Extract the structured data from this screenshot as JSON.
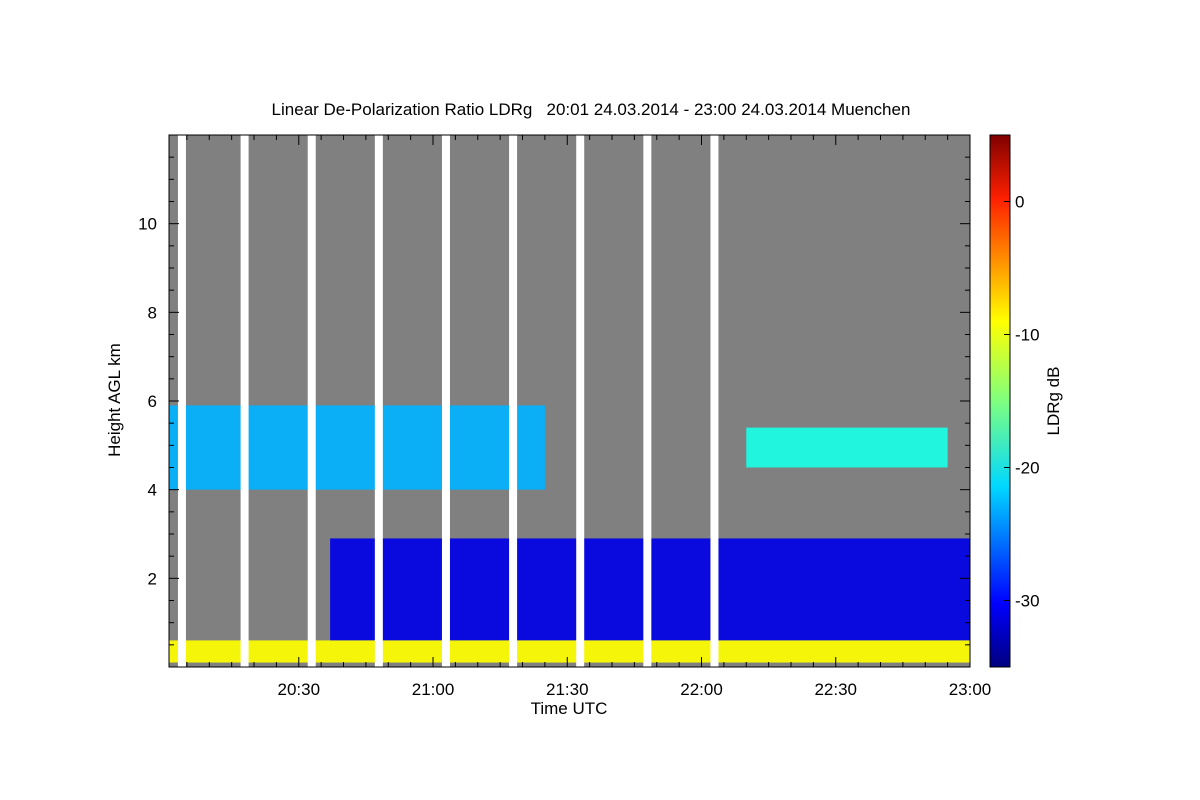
{
  "chart_data": {
    "type": "heatmap",
    "title": "Linear De-Polarization Ratio LDRg   20:01 24.03.2014 - 23:00 24.03.2014 Muenchen",
    "xlabel": "Time UTC",
    "ylabel": "Height AGL km",
    "colorbar_label": "LDRg dB",
    "x_range_minutes_utc": [
      1201,
      1380
    ],
    "x_ticks": [
      {
        "value": 1230,
        "label": "20:30"
      },
      {
        "value": 1260,
        "label": "21:00"
      },
      {
        "value": 1290,
        "label": "21:30"
      },
      {
        "value": 1320,
        "label": "22:00"
      },
      {
        "value": 1350,
        "label": "22:30"
      },
      {
        "value": 1380,
        "label": "23:00"
      }
    ],
    "y_range_km": [
      0,
      12
    ],
    "y_ticks": [
      {
        "value": 2,
        "label": "2"
      },
      {
        "value": 4,
        "label": "4"
      },
      {
        "value": 6,
        "label": "6"
      },
      {
        "value": 8,
        "label": "8"
      },
      {
        "value": 10,
        "label": "10"
      }
    ],
    "colorbar_range_db": [
      -35,
      5
    ],
    "colorbar_ticks": [
      {
        "value": 0,
        "label": "0"
      },
      {
        "value": -10,
        "label": "-10"
      },
      {
        "value": -20,
        "label": "-20"
      },
      {
        "value": -30,
        "label": "-30"
      }
    ],
    "colormap": "jet",
    "no_signal_color": "#808080",
    "scan_gap_times_utc": [
      "20:03",
      "20:17",
      "20:32",
      "20:47",
      "21:02",
      "21:17",
      "21:32",
      "21:47",
      "22:02"
    ],
    "features": [
      {
        "name": "upper aerosol/ice layer",
        "t_start": "20:01",
        "t_end": "21:25",
        "h_bottom_km": 4.0,
        "h_top_km": 5.9,
        "ldr_db": -23
      },
      {
        "name": "thin upper layer",
        "t_start": "22:10",
        "t_end": "22:55",
        "h_bottom_km": 4.5,
        "h_top_km": 5.4,
        "ldr_db": -19
      },
      {
        "name": "lower cloud layer",
        "t_start": "20:37",
        "t_end": "23:00",
        "h_bottom_km": 0.6,
        "h_top_km": 2.9,
        "ldr_db": -31
      },
      {
        "name": "near-surface layer",
        "t_start": "20:01",
        "t_end": "23:00",
        "h_bottom_km": 0.1,
        "h_top_km": 0.6,
        "ldr_db": -10
      }
    ]
  }
}
